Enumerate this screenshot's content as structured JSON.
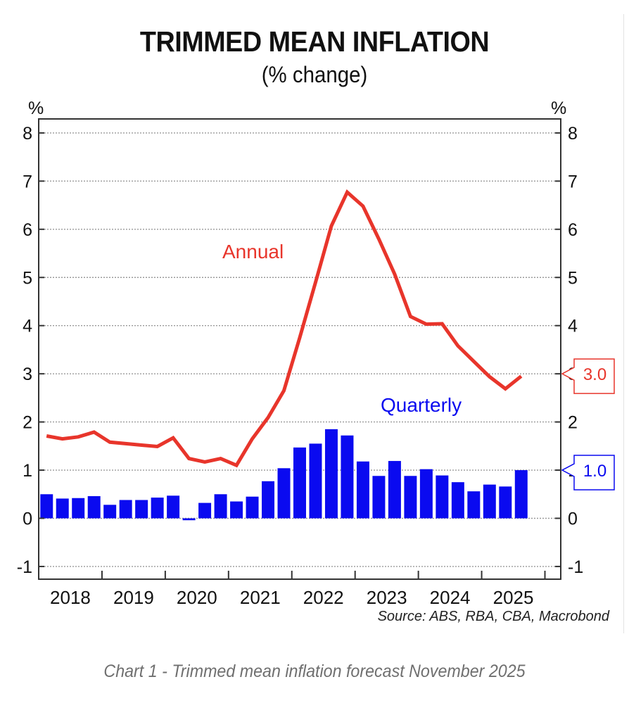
{
  "header": {
    "title": "TRIMMED MEAN INFLATION",
    "subtitle": "(% change)"
  },
  "caption": "Chart 1 - Trimmed mean inflation forecast November 2025",
  "colors": {
    "annual": "#e8352b",
    "quarterly": "#0a0af0",
    "grid": "#9a9a9a",
    "axis": "#333333"
  },
  "chart_data": {
    "type": "bar",
    "title": "TRIMMED MEAN INFLATION",
    "subtitle": "(% change)",
    "xlabel": "",
    "ylabel_left": "%",
    "ylabel_right": "%",
    "ylim": [
      -1.3,
      8.3
    ],
    "yticks": [
      -1,
      0,
      1,
      2,
      3,
      4,
      5,
      6,
      7,
      8
    ],
    "ytick_labels": [
      "-1",
      "0",
      "1",
      "2",
      "3",
      "4",
      "5",
      "6",
      "7",
      "8"
    ],
    "grid": true,
    "x_years": [
      "2018",
      "2019",
      "2020",
      "2021",
      "2022",
      "2023",
      "2024",
      "2025"
    ],
    "x_quarter_range": [
      "2018Q1",
      "2026Q1"
    ],
    "categories": [
      "2018Q1",
      "2018Q2",
      "2018Q3",
      "2018Q4",
      "2019Q1",
      "2019Q2",
      "2019Q3",
      "2019Q4",
      "2020Q1",
      "2020Q2",
      "2020Q3",
      "2020Q4",
      "2021Q1",
      "2021Q2",
      "2021Q3",
      "2021Q4",
      "2022Q1",
      "2022Q2",
      "2022Q3",
      "2022Q4",
      "2023Q1",
      "2023Q2",
      "2023Q3",
      "2023Q4",
      "2024Q1",
      "2024Q2",
      "2024Q3",
      "2024Q4",
      "2025Q1",
      "2025Q2",
      "2025Q3"
    ],
    "series": [
      {
        "name": "Quarterly",
        "type": "bar",
        "values": [
          0.5,
          0.41,
          0.42,
          0.46,
          0.28,
          0.38,
          0.38,
          0.43,
          0.47,
          -0.04,
          0.32,
          0.5,
          0.35,
          0.45,
          0.77,
          1.04,
          1.47,
          1.55,
          1.85,
          1.72,
          1.18,
          0.88,
          1.19,
          0.88,
          1.02,
          0.89,
          0.75,
          0.56,
          0.7,
          0.66,
          1.0
        ]
      },
      {
        "name": "Annual",
        "type": "line",
        "values": [
          1.71,
          1.65,
          1.69,
          1.79,
          1.58,
          1.55,
          1.52,
          1.49,
          1.67,
          1.24,
          1.17,
          1.24,
          1.1,
          1.65,
          2.09,
          2.65,
          3.75,
          4.9,
          6.07,
          6.77,
          6.48,
          5.8,
          5.07,
          4.19,
          4.03,
          4.04,
          3.58,
          3.26,
          2.94,
          2.69,
          2.95
        ]
      }
    ],
    "annotations": [
      {
        "text": "Annual",
        "series": "Annual"
      },
      {
        "text": "Quarterly",
        "series": "Quarterly"
      },
      {
        "text": "3.0",
        "series": "Annual",
        "value": 3.0,
        "side": "right"
      },
      {
        "text": "1.0",
        "series": "Quarterly",
        "value": 1.0,
        "side": "right"
      }
    ],
    "source": "Source: ABS, RBA, CBA, Macrobond"
  }
}
